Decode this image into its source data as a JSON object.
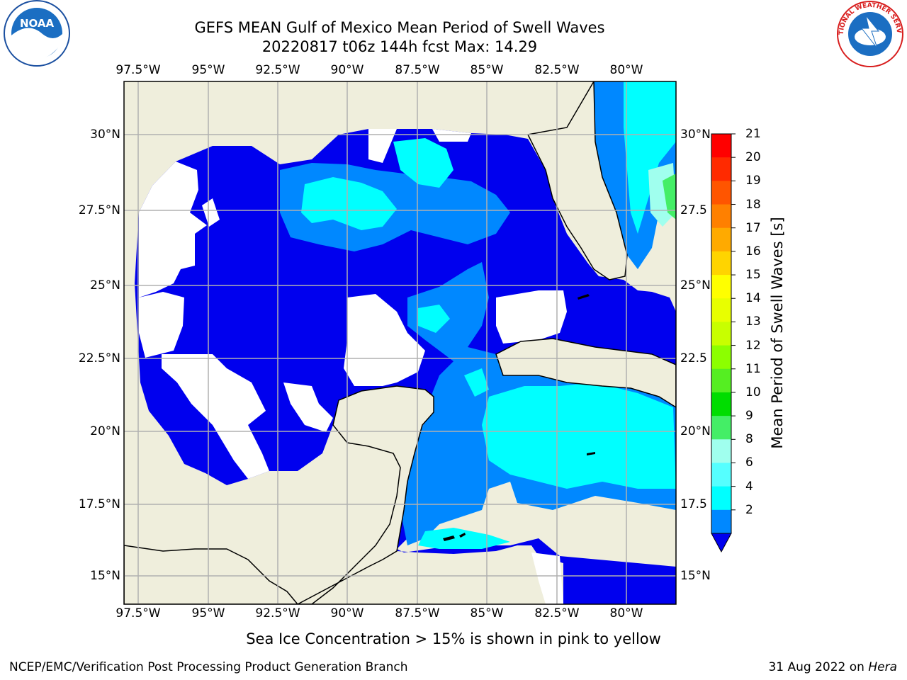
{
  "title": {
    "line1": "GEFS MEAN Gulf of Mexico Mean Period of Swell Waves",
    "line2": "20220817 t06z 144h fcst   Max: 14.29"
  },
  "logos": {
    "left": {
      "icon": "noaa-logo",
      "text": "NOAA"
    },
    "right": {
      "icon": "nws-logo",
      "text": "NATIONAL WEATHER SERVICE"
    }
  },
  "map": {
    "lon_ticks": [
      "97.5°W",
      "95°W",
      "92.5°W",
      "90°W",
      "87.5°W",
      "85°W",
      "82.5°W",
      "80°W"
    ],
    "lat_ticks_left": [
      "30°N",
      "27.5°N",
      "25°N",
      "22.5°N",
      "20°N",
      "17.5°N",
      "15°N"
    ],
    "lat_ticks_right": [
      "30°N",
      "27.5",
      "25°N",
      "22.5",
      "20°N",
      "17.5",
      "15°N"
    ],
    "colors": {
      "land": "#efeedc",
      "no_data": "#ffffff",
      "grid": "#b0b0b0"
    }
  },
  "colorbar": {
    "title": "Mean Period of Swell Waves [s]",
    "labels": [
      "21",
      "20",
      "19",
      "18",
      "17",
      "16",
      "15",
      "14",
      "13",
      "12",
      "11",
      "10",
      "9",
      "8",
      "6",
      "4",
      "2"
    ],
    "colors": [
      "#ff0000",
      "#ff2a00",
      "#ff5500",
      "#ff8000",
      "#ffaa00",
      "#ffd400",
      "#ffff00",
      "#e8ff00",
      "#c8ff00",
      "#8cff00",
      "#55ee22",
      "#00dd00",
      "#44ee66",
      "#a0ffee",
      "#55ffff",
      "#00ffff",
      "#0088ff",
      "#0000ee"
    ]
  },
  "note": "Sea Ice Concentration > 15% is shown in pink to yellow",
  "footer": {
    "left": "NCEP/EMC/Verification Post Processing Product Generation Branch",
    "right_date": "31 Aug 2022 on ",
    "right_host": "Hera"
  }
}
